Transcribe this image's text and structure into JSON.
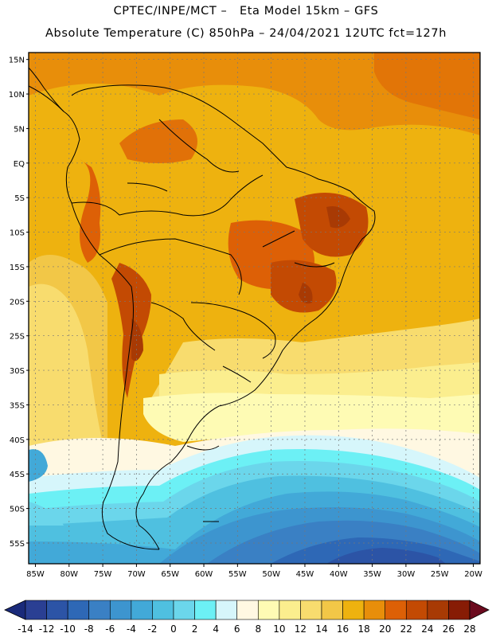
{
  "header": {
    "line1": "CPTEC/INPE/MCT –   Eta Model 15km – GFS",
    "line2": "Absolute Temperature (C) 850hPa – 24/04/2021 12UTC fct=127h"
  },
  "map": {
    "lon_ticks": [
      "85W",
      "80W",
      "75W",
      "70W",
      "65W",
      "60W",
      "55W",
      "50W",
      "45W",
      "40W",
      "35W",
      "30W",
      "25W",
      "20W"
    ],
    "lat_ticks": [
      "15N",
      "10N",
      "5N",
      "EQ",
      "5S",
      "10S",
      "15S",
      "20S",
      "25S",
      "30S",
      "35S",
      "40S",
      "45S",
      "50S",
      "55S"
    ],
    "lon_range": [
      -86,
      -19
    ],
    "lat_range": [
      -58,
      16
    ]
  },
  "colorbar": {
    "labels": [
      "-14",
      "-12",
      "-10",
      "-8",
      "-6",
      "-4",
      "-2",
      "0",
      "2",
      "4",
      "6",
      "8",
      "10",
      "12",
      "14",
      "16",
      "18",
      "20",
      "22",
      "24",
      "26",
      "28"
    ],
    "colors": [
      "#2a3f93",
      "#2c54a6",
      "#2e68b6",
      "#3a80c4",
      "#3d95cf",
      "#42a9d8",
      "#4fc0e0",
      "#6bd6eb",
      "#6cf0f5",
      "#d6f6fb",
      "#fff8e2",
      "#fefbb4",
      "#fbee8e",
      "#f8dc6e",
      "#f2c747",
      "#eeb20f",
      "#e88e0a",
      "#dd6006",
      "#c34a03",
      "#a83a04",
      "#871c05"
    ],
    "min_color": "#1a2a7a",
    "max_color": "#6b0a1e"
  }
}
